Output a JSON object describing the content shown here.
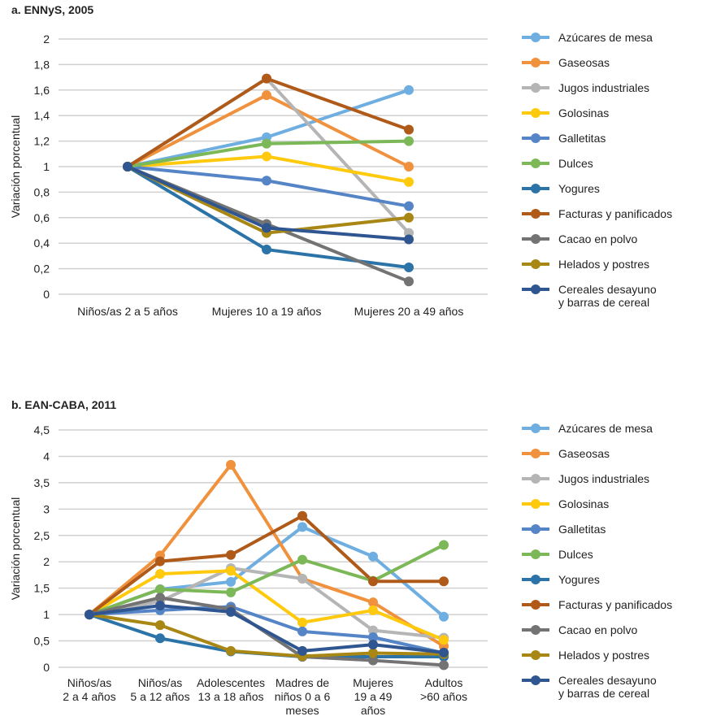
{
  "chart_data": [
    {
      "type": "line",
      "title": "a. ENNyS, 2005",
      "ylabel": "Variación porcentual",
      "xlabel": "",
      "ylim": [
        0,
        2
      ],
      "yticks": [
        0,
        0.2,
        0.4,
        0.6,
        0.8,
        1,
        1.2,
        1.4,
        1.6,
        1.8,
        2
      ],
      "ytick_labels": [
        "0",
        "0,2",
        "0,4",
        "0,6",
        "0,8",
        "1",
        "1,2",
        "1,4",
        "1,6",
        "1,8",
        "2"
      ],
      "categories": [
        [
          "Niños/as 2 a 5 años"
        ],
        [
          "Mujeres 10 a 19 años"
        ],
        [
          "Mujeres 20 a 49 años"
        ]
      ],
      "legend_position": "right",
      "grid": true,
      "series": [
        {
          "name": [
            "Azúcares de mesa"
          ],
          "color": "#6FAEE0",
          "values": [
            1,
            1.23,
            1.6
          ]
        },
        {
          "name": [
            "Gaseosas"
          ],
          "color": "#F0913E",
          "values": [
            1,
            1.56,
            1.0
          ]
        },
        {
          "name": [
            "Jugos industriales"
          ],
          "color": "#B5B5B5",
          "values": [
            1,
            1.69,
            0.48
          ]
        },
        {
          "name": [
            "Golosinas"
          ],
          "color": "#FFC90E",
          "values": [
            1,
            1.08,
            0.88
          ]
        },
        {
          "name": [
            "Galletitas"
          ],
          "color": "#5585C6",
          "values": [
            1,
            0.89,
            0.69
          ]
        },
        {
          "name": [
            "Dulces"
          ],
          "color": "#7DB858",
          "values": [
            1,
            1.18,
            1.2
          ]
        },
        {
          "name": [
            "Yogures"
          ],
          "color": "#2C74A8",
          "values": [
            1,
            0.35,
            0.21
          ]
        },
        {
          "name": [
            "Facturas y panificados"
          ],
          "color": "#B05A1A",
          "values": [
            1,
            1.69,
            1.29
          ]
        },
        {
          "name": [
            "Cacao en polvo"
          ],
          "color": "#737373",
          "values": [
            1,
            0.55,
            0.1
          ]
        },
        {
          "name": [
            "Helados y postres"
          ],
          "color": "#A88714",
          "values": [
            1,
            0.48,
            0.6
          ]
        },
        {
          "name": [
            "Cereales desayuno",
            "y barras de cereal"
          ],
          "color": "#2F5690",
          "values": [
            1,
            0.52,
            0.43
          ]
        }
      ]
    },
    {
      "type": "line",
      "title": "b. EAN-CABA, 2011",
      "ylabel": "Variación porcentual",
      "xlabel": "",
      "ylim": [
        0,
        4.5
      ],
      "yticks": [
        0,
        0.5,
        1,
        1.5,
        2,
        2.5,
        3,
        3.5,
        4,
        4.5
      ],
      "ytick_labels": [
        "0",
        "0,5",
        "1",
        "1,5",
        "2",
        "2,5",
        "3",
        "3,5",
        "4",
        "4,5"
      ],
      "categories": [
        [
          "Niños/as",
          "2 a 4 años"
        ],
        [
          "Niños/as",
          "5 a 12 años"
        ],
        [
          "Adolescentes",
          "13 a 18 años"
        ],
        [
          "Madres de",
          "niños 0 a 6",
          "meses"
        ],
        [
          "Mujeres",
          "19 a 49",
          "años"
        ],
        [
          "Adultos",
          ">60 años"
        ]
      ],
      "legend_position": "right",
      "grid": true,
      "series": [
        {
          "name": [
            "Azúcares de mesa"
          ],
          "color": "#6FAEE0",
          "values": [
            1,
            1.48,
            1.62,
            2.66,
            2.1,
            0.96
          ]
        },
        {
          "name": [
            "Gaseosas"
          ],
          "color": "#F0913E",
          "values": [
            1,
            2.12,
            3.84,
            1.68,
            1.23,
            0.4
          ]
        },
        {
          "name": [
            "Jugos industriales"
          ],
          "color": "#B5B5B5",
          "values": [
            1,
            1.25,
            1.88,
            1.68,
            0.7,
            0.56
          ]
        },
        {
          "name": [
            "Golosinas"
          ],
          "color": "#FFC90E",
          "values": [
            1,
            1.77,
            1.83,
            0.85,
            1.08,
            0.52
          ]
        },
        {
          "name": [
            "Galletitas"
          ],
          "color": "#5585C6",
          "values": [
            1,
            1.08,
            1.15,
            0.68,
            0.57,
            0.27
          ]
        },
        {
          "name": [
            "Dulces"
          ],
          "color": "#7DB858",
          "values": [
            1,
            1.48,
            1.42,
            2.04,
            1.64,
            2.32
          ]
        },
        {
          "name": [
            "Yogures"
          ],
          "color": "#2C74A8",
          "values": [
            1,
            0.55,
            0.3,
            0.2,
            0.2,
            0.2
          ]
        },
        {
          "name": [
            "Facturas y panificados"
          ],
          "color": "#B05A1A",
          "values": [
            1,
            2.01,
            2.13,
            2.87,
            1.63,
            1.63
          ]
        },
        {
          "name": [
            "Cacao en polvo"
          ],
          "color": "#737373",
          "values": [
            1,
            1.32,
            1.1,
            0.2,
            0.13,
            0.04
          ]
        },
        {
          "name": [
            "Helados y postres"
          ],
          "color": "#A88714",
          "values": [
            1,
            0.8,
            0.31,
            0.21,
            0.27,
            0.25
          ]
        },
        {
          "name": [
            "Cereales desayuno",
            "y barras de cereal"
          ],
          "color": "#2F5690",
          "values": [
            1,
            1.17,
            1.05,
            0.31,
            0.43,
            0.28
          ]
        }
      ]
    }
  ]
}
